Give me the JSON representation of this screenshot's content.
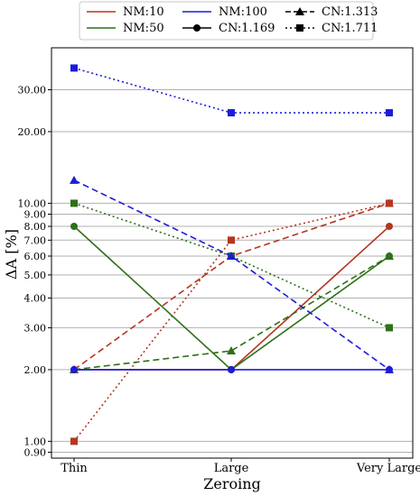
{
  "chart_data": {
    "type": "line",
    "title": "",
    "xlabel": "Zeroing",
    "ylabel": "ΔA [%]",
    "yscale": "log",
    "ylim": [
      0.85,
      45
    ],
    "categories": [
      "Thin",
      "Large",
      "Very Large"
    ],
    "yticks": [
      {
        "value": 0.9,
        "label": "0.90"
      },
      {
        "value": 1.0,
        "label": "1.00"
      },
      {
        "value": 2.0,
        "label": "2.00"
      },
      {
        "value": 3.0,
        "label": "3.00"
      },
      {
        "value": 4.0,
        "label": "4.00"
      },
      {
        "value": 5.0,
        "label": "5.00"
      },
      {
        "value": 6.0,
        "label": "6.00"
      },
      {
        "value": 7.0,
        "label": "7.00"
      },
      {
        "value": 8.0,
        "label": "8.00"
      },
      {
        "value": 9.0,
        "label": "9.00"
      },
      {
        "value": 10.0,
        "label": "10.00"
      },
      {
        "value": 20.0,
        "label": "20.00"
      },
      {
        "value": 30.0,
        "label": "30.00"
      }
    ],
    "grid": true,
    "legend_position": "top",
    "legend": [
      {
        "label": "NM:10",
        "color": "#b5361f",
        "kind": "line"
      },
      {
        "label": "NM:50",
        "color": "#2e7018",
        "kind": "line"
      },
      {
        "label": "NM:100",
        "color": "#1c1cd8",
        "kind": "line"
      },
      {
        "label": "CN:1.169",
        "color": "#000000",
        "kind": "solid-circle"
      },
      {
        "label": "CN:1.313",
        "color": "#000000",
        "kind": "dashed-triangle"
      },
      {
        "label": "CN:1.711",
        "color": "#000000",
        "kind": "dotted-square"
      }
    ],
    "series": [
      {
        "nm": "10",
        "cn": "1.169",
        "color": "#b5361f",
        "dash": "solid",
        "marker": "circle",
        "values": [
          2,
          2,
          8
        ]
      },
      {
        "nm": "10",
        "cn": "1.313",
        "color": "#b5361f",
        "dash": "dashed",
        "marker": "triangle",
        "values": [
          2,
          6,
          10
        ]
      },
      {
        "nm": "10",
        "cn": "1.711",
        "color": "#b5361f",
        "dash": "dotted",
        "marker": "square",
        "values": [
          1,
          7,
          10
        ]
      },
      {
        "nm": "50",
        "cn": "1.169",
        "color": "#2e7018",
        "dash": "solid",
        "marker": "circle",
        "values": [
          8,
          2,
          6
        ]
      },
      {
        "nm": "50",
        "cn": "1.313",
        "color": "#2e7018",
        "dash": "dashed",
        "marker": "triangle",
        "values": [
          2,
          2.4,
          6
        ]
      },
      {
        "nm": "50",
        "cn": "1.711",
        "color": "#2e7018",
        "dash": "dotted",
        "marker": "square",
        "values": [
          10,
          6,
          3
        ]
      },
      {
        "nm": "100",
        "cn": "1.169",
        "color": "#1c1cd8",
        "dash": "solid",
        "marker": "circle",
        "values": [
          2,
          2,
          2
        ]
      },
      {
        "nm": "100",
        "cn": "1.313",
        "color": "#1c1cd8",
        "dash": "dashed",
        "marker": "triangle",
        "values": [
          12.5,
          6,
          2
        ]
      },
      {
        "nm": "100",
        "cn": "1.711",
        "color": "#1c1cd8",
        "dash": "dotted",
        "marker": "square",
        "values": [
          37,
          24,
          24
        ]
      }
    ]
  }
}
